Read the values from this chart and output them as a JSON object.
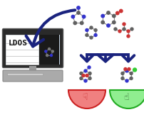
{
  "bg_color": "#ffffff",
  "arrow_color": "#1a237e",
  "computer_screen_bg": "#1a1a1a",
  "computer_screen_light": "#c8d8e8",
  "ldos_text": "LDOS",
  "bowl_left_color": "#f08080",
  "bowl_right_color": "#90ee90",
  "thumbdown_color": "#cc3333",
  "thumbup_color": "#336633",
  "molecule_colors": {
    "carbon": "#606060",
    "nitrogen": "#3333cc",
    "oxygen": "#cc3333",
    "hydrogen": "#aaaaaa",
    "chlorine": "#33cc33"
  }
}
